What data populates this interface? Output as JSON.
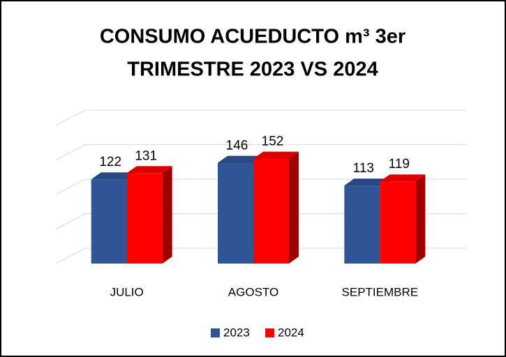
{
  "chart_data": {
    "type": "bar3d",
    "title": [
      "CONSUMO ACUEDUCTO m³ 3er",
      "TRIMESTRE 2023 VS 2024"
    ],
    "categories": [
      "JULIO",
      "AGOSTO",
      "SEPTIEMBRE"
    ],
    "series": [
      {
        "name": "2023",
        "color": "#2f5597",
        "values": [
          122,
          146,
          113
        ]
      },
      {
        "name": "2024",
        "color": "#ff0000",
        "values": [
          131,
          152,
          119
        ]
      }
    ],
    "ylim": [
      0,
      200
    ],
    "yticks": [
      0,
      50,
      100,
      150,
      200
    ],
    "grid": true,
    "legend": "bottom"
  }
}
